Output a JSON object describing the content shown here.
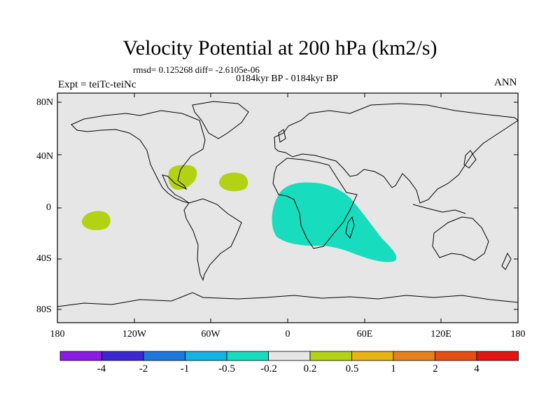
{
  "title": "Velocity Potential at 200 hPa (km2/s)",
  "stats_line": "rmsd= 0.125268  diff= -2.6105e-06",
  "period": "0184kyr BP - 0184kyr BP",
  "experiment": "Expt = teiTc-teiNc",
  "season": "ANN",
  "lat_labels": [
    "80N",
    "40N",
    "0",
    "40S",
    "80S"
  ],
  "lon_labels": [
    "180",
    "120W",
    "60W",
    "0",
    "60E",
    "120E",
    "180"
  ],
  "colorbar": {
    "labels": [
      "-4",
      "-2",
      "-1",
      "-0.5",
      "-0.2",
      "0.2",
      "0.5",
      "1",
      "2",
      "4"
    ],
    "colors": [
      "#8c1ae6",
      "#3c28d2",
      "#1e78dc",
      "#14b4e0",
      "#18dcbe",
      "#e6e6e6",
      "#b4d214",
      "#e6b414",
      "#e6821e",
      "#e65014",
      "#e61414"
    ]
  },
  "map_colors": {
    "ocean_land": "#e6e6e6",
    "positive_anomaly": "#b4d214",
    "negative_anomaly": "#18dcbe"
  }
}
